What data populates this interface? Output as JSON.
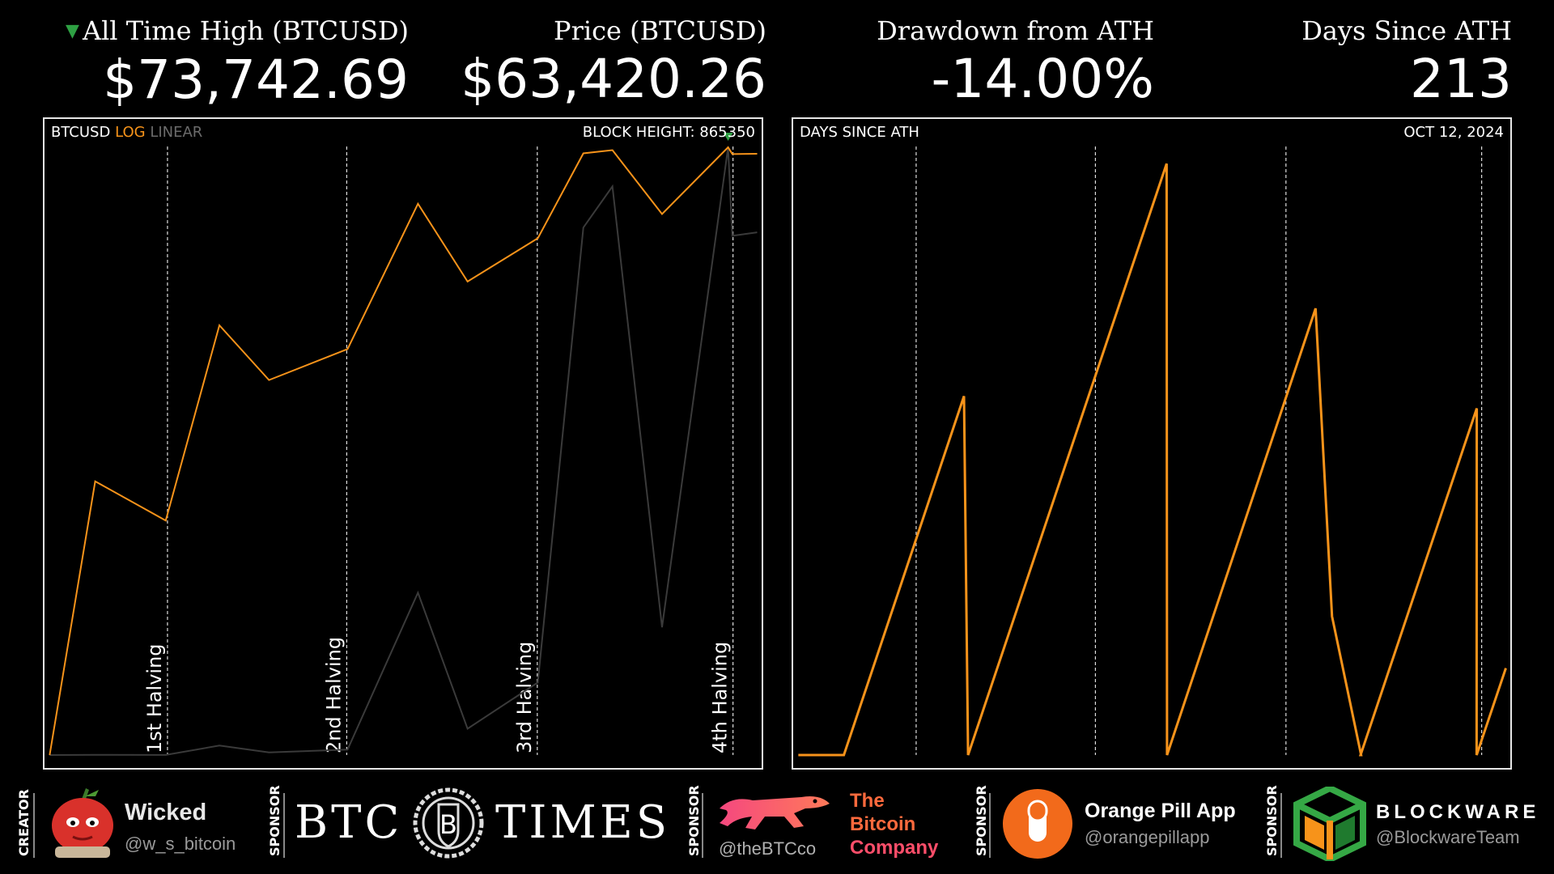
{
  "stats": {
    "ath": {
      "label": "All Time High (BTCUSD)",
      "value": "$73,742.69"
    },
    "price": {
      "label": "Price (BTCUSD)",
      "value": "$63,420.26"
    },
    "drawdown": {
      "label": "Drawdown from ATH",
      "value": "-14.00%"
    },
    "days": {
      "label": "Days Since ATH",
      "value": "213"
    }
  },
  "left_panel": {
    "ticker": "BTCUSD",
    "log": "LOG",
    "linear": "LINEAR",
    "block_height": "BLOCK HEIGHT: 865350",
    "halvings": [
      "1st Halving",
      "2nd Halving",
      "3rd Halving",
      "4th Halving"
    ]
  },
  "right_panel": {
    "title": "DAYS SINCE ATH",
    "date": "OCT 12, 2024"
  },
  "colors": {
    "price_log": "#f7931a",
    "price_linear": "#3a3a3a",
    "ath_marker": "#2ea043",
    "days_line": "#f7931a"
  },
  "chart_data": [
    {
      "type": "line",
      "title": "BTCUSD",
      "scale": "log",
      "x": [
        "2010-07",
        "2011-06",
        "2012-11",
        "2013-12",
        "2014-12",
        "2016-07",
        "2017-12",
        "2018-12",
        "2020-05",
        "2021-04",
        "2021-11",
        "2022-11",
        "2024-03",
        "2024-04",
        "2024-10"
      ],
      "series": [
        {
          "name": "LOG",
          "values": [
            0.05,
            30,
            12,
            1150,
            320,
            660,
            19700,
            3200,
            8800,
            64000,
            69000,
            15500,
            73742.69,
            63000,
            63420.26
          ]
        },
        {
          "name": "LINEAR",
          "values": [
            0.05,
            30,
            12,
            1150,
            320,
            660,
            19700,
            3200,
            8800,
            64000,
            69000,
            15500,
            73742.69,
            63000,
            63420.26
          ]
        }
      ],
      "halvings": [
        "2012-11-28",
        "2016-07-09",
        "2020-05-11",
        "2024-04-20"
      ],
      "grid": false,
      "legend": "top-left"
    },
    {
      "type": "line",
      "title": "DAYS SINCE ATH",
      "x": [
        "2010-07",
        "2011-06",
        "2013-11",
        "2013-12",
        "2017-12",
        "2017-12-18",
        "2020-12",
        "2021-04",
        "2021-11",
        "2021-11-11",
        "2024-03",
        "2024-03-14",
        "2024-10"
      ],
      "series": [
        {
          "name": "DAYS SINCE ATH",
          "values": [
            0,
            0,
            880,
            0,
            1450,
            0,
            1095,
            340,
            0,
            0,
            850,
            0,
            213
          ]
        }
      ],
      "halvings": [
        "2012-11-28",
        "2016-07-09",
        "2020-05-11",
        "2024-04-20"
      ],
      "grid": false
    }
  ],
  "footer": {
    "creator_label": "CREATOR",
    "creator_name": "Wicked",
    "creator_handle": "@w_s_bitcoin",
    "sponsor_label": "SPONSOR",
    "btctimes_left": "BTC",
    "btctimes_mid": "B",
    "btctimes_right": "TIMES",
    "bitcoinco_handle": "@theBTCco",
    "bitcoinco_l1": "The",
    "bitcoinco_l2": "Bitcoin",
    "bitcoinco_l3": "Company",
    "opa_name": "Orange Pill App",
    "opa_handle": "@orangepillapp",
    "blockware_name": "BLOCKWARE",
    "blockware_handle": "@BlockwareTeam"
  }
}
